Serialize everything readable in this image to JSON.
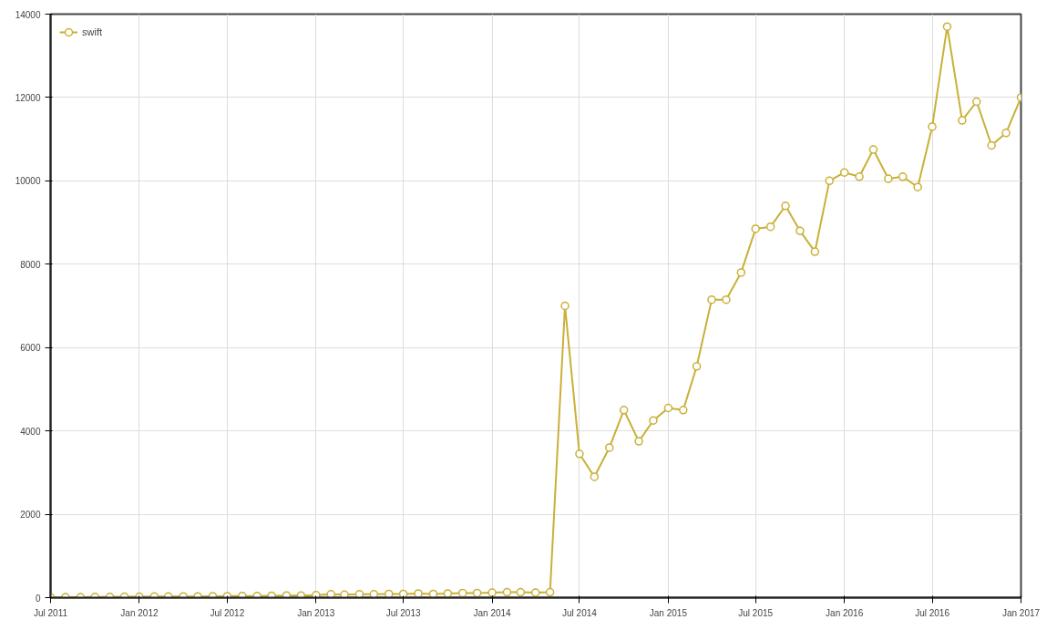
{
  "chart_data": {
    "type": "line",
    "x": [
      "2011-07",
      "2011-08",
      "2011-09",
      "2011-10",
      "2011-11",
      "2011-12",
      "2012-01",
      "2012-02",
      "2012-03",
      "2012-04",
      "2012-05",
      "2012-06",
      "2012-07",
      "2012-08",
      "2012-09",
      "2012-10",
      "2012-11",
      "2012-12",
      "2013-01",
      "2013-02",
      "2013-03",
      "2013-04",
      "2013-05",
      "2013-06",
      "2013-07",
      "2013-08",
      "2013-09",
      "2013-10",
      "2013-11",
      "2013-12",
      "2014-01",
      "2014-02",
      "2014-03",
      "2014-04",
      "2014-05",
      "2014-06",
      "2014-07",
      "2014-08",
      "2014-09",
      "2014-10",
      "2014-11",
      "2014-12",
      "2015-01",
      "2015-02",
      "2015-03",
      "2015-04",
      "2015-05",
      "2015-06",
      "2015-07",
      "2015-08",
      "2015-09",
      "2015-10",
      "2015-11",
      "2015-12",
      "2016-01",
      "2016-02",
      "2016-03",
      "2016-04",
      "2016-05",
      "2016-06",
      "2016-07",
      "2016-08",
      "2016-09",
      "2016-10",
      "2016-11",
      "2016-12",
      "2017-01"
    ],
    "series": [
      {
        "name": "swift",
        "color": "#c9b037",
        "values": [
          5,
          10,
          10,
          15,
          15,
          20,
          20,
          25,
          25,
          30,
          30,
          35,
          35,
          40,
          40,
          45,
          50,
          50,
          60,
          80,
          70,
          80,
          80,
          90,
          90,
          100,
          90,
          100,
          110,
          110,
          120,
          130,
          130,
          120,
          130,
          7000,
          3450,
          2900,
          3600,
          4500,
          3750,
          4250,
          4550,
          4500,
          5550,
          7150,
          7150,
          7800,
          8850,
          8900,
          9400,
          8800,
          8300,
          10000,
          10200,
          10100,
          10750,
          10050,
          10100,
          9850,
          11300,
          13700,
          11450,
          11900,
          10850,
          11150,
          12000
        ]
      }
    ],
    "xlim": [
      "2011-07",
      "2017-01"
    ],
    "xticks": [
      {
        "value": "2011-07",
        "label": "Jul 2011"
      },
      {
        "value": "2012-01",
        "label": "Jan 2012"
      },
      {
        "value": "2012-07",
        "label": "Jul 2012"
      },
      {
        "value": "2013-01",
        "label": "Jan 2013"
      },
      {
        "value": "2013-07",
        "label": "Jul 2013"
      },
      {
        "value": "2014-01",
        "label": "Jan 2014"
      },
      {
        "value": "2014-07",
        "label": "Jul 2014"
      },
      {
        "value": "2015-01",
        "label": "Jan 2015"
      },
      {
        "value": "2015-07",
        "label": "Jul 2015"
      },
      {
        "value": "2016-01",
        "label": "Jan 2016"
      },
      {
        "value": "2016-07",
        "label": "Jul 2016"
      },
      {
        "value": "2017-01",
        "label": "Jan 2017"
      }
    ],
    "ylim": [
      0,
      14000
    ],
    "yticks": [
      0,
      2000,
      4000,
      6000,
      8000,
      10000,
      12000,
      14000
    ],
    "grid": true,
    "legend": "top left",
    "marker": "circle",
    "line_style": "solid"
  }
}
